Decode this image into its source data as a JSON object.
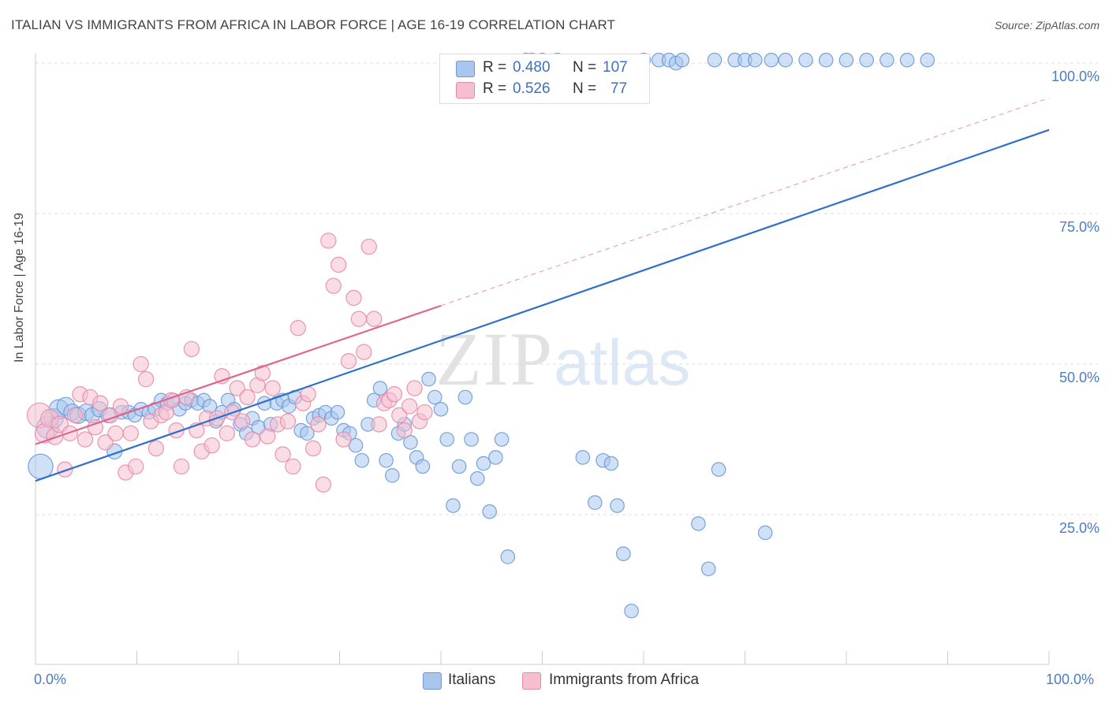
{
  "title": "ITALIAN VS IMMIGRANTS FROM AFRICA IN LABOR FORCE | AGE 16-19 CORRELATION CHART",
  "source": "Source: ZipAtlas.com",
  "watermark": {
    "zip": "ZIP",
    "atlas": "atlas"
  },
  "legend_top": {
    "rows": [
      {
        "r_label": "R =",
        "r_value": "0.480",
        "n_label": "N =",
        "n_value": "107",
        "color": "#a9c6ee"
      },
      {
        "r_label": "R =",
        "r_value": "0.526",
        "n_label": "N =",
        "n_value": "77",
        "color": "#f6bfd0"
      }
    ]
  },
  "legend_bottom": [
    {
      "label": "Italians",
      "color": "#a9c6ee"
    },
    {
      "label": "Immigrants from Africa",
      "color": "#f6bfd0"
    }
  ],
  "colors": {
    "italians_fill": "#a9c6ee",
    "italians_stroke": "#6c9ad6",
    "italians_line": "#2f6fcb",
    "africa_fill": "#f6bfd0",
    "africa_stroke": "#e98aa8",
    "africa_line": "#e0648e",
    "grid": "#dddddd",
    "tick_text": "#4a7cc5"
  },
  "chart_data": {
    "type": "scatter",
    "title": "ITALIAN VS IMMIGRANTS FROM AFRICA IN LABOR FORCE | AGE 16-19 CORRELATION CHART",
    "xlabel": "",
    "ylabel": "In Labor Force | Age 16-19",
    "xlim": [
      0,
      100
    ],
    "ylim": [
      0,
      105
    ],
    "x_tick_labels": [
      "0.0%",
      "100.0%"
    ],
    "y_ticks": [
      {
        "value": 100,
        "label": "100.0%"
      },
      {
        "value": 75,
        "label": "75.0%"
      },
      {
        "value": 50,
        "label": "50.0%"
      },
      {
        "value": 25,
        "label": "25.0%"
      }
    ],
    "grid": true,
    "legend_position": "bottom",
    "series": [
      {
        "name": "Italians",
        "r": 0.48,
        "n": 107,
        "trend": {
          "x": [
            0,
            100
          ],
          "y": [
            30.6,
            88.9
          ],
          "style": "solid"
        },
        "points": [
          [
            0.5,
            33.0,
            18
          ],
          [
            1.2,
            39.5,
            16
          ],
          [
            1.8,
            41.0,
            14
          ],
          [
            2.3,
            42.5,
            14
          ],
          [
            3.0,
            43.0,
            13
          ],
          [
            3.6,
            42.0,
            12
          ],
          [
            4.2,
            41.5,
            12
          ],
          [
            5.0,
            42.0,
            12
          ],
          [
            5.6,
            41.5,
            11
          ],
          [
            6.3,
            42.5,
            11
          ],
          [
            7.2,
            41.5,
            11
          ],
          [
            7.8,
            35.5,
            11
          ],
          [
            8.5,
            42.0,
            10
          ],
          [
            9.2,
            42.0,
            10
          ],
          [
            9.8,
            41.5,
            10
          ],
          [
            10.4,
            42.5,
            10
          ],
          [
            11.2,
            42.0,
            10
          ],
          [
            11.8,
            42.5,
            10
          ],
          [
            12.4,
            44.0,
            10
          ],
          [
            13.0,
            43.5,
            10
          ],
          [
            13.6,
            44.0,
            10
          ],
          [
            14.2,
            42.5,
            10
          ],
          [
            14.8,
            43.5,
            10
          ],
          [
            15.4,
            44.0,
            10
          ],
          [
            16.0,
            43.5,
            10
          ],
          [
            16.6,
            44.0,
            10
          ],
          [
            17.2,
            43.0,
            10
          ],
          [
            17.8,
            40.5,
            10
          ],
          [
            18.4,
            42.0,
            10
          ],
          [
            19.0,
            44.0,
            10
          ],
          [
            19.6,
            42.5,
            10
          ],
          [
            20.2,
            40.0,
            10
          ],
          [
            20.8,
            38.5,
            10
          ],
          [
            21.4,
            41.0,
            10
          ],
          [
            22.0,
            39.5,
            10
          ],
          [
            22.6,
            43.5,
            10
          ],
          [
            23.2,
            40.0,
            10
          ],
          [
            23.8,
            43.5,
            10
          ],
          [
            24.4,
            44.0,
            10
          ],
          [
            25.0,
            43.0,
            10
          ],
          [
            25.6,
            44.5,
            10
          ],
          [
            26.2,
            39.0,
            10
          ],
          [
            26.8,
            38.5,
            10
          ],
          [
            27.4,
            41.0,
            10
          ],
          [
            28.0,
            41.5,
            10
          ],
          [
            28.6,
            42.0,
            10
          ],
          [
            29.2,
            41.0,
            10
          ],
          [
            29.8,
            42.0,
            10
          ],
          [
            30.4,
            39.0,
            10
          ],
          [
            31.0,
            38.5,
            10
          ],
          [
            31.6,
            36.5,
            10
          ],
          [
            32.2,
            34.0,
            10
          ],
          [
            32.8,
            40.0,
            10
          ],
          [
            33.4,
            44.0,
            10
          ],
          [
            34.0,
            46.0,
            10
          ],
          [
            34.6,
            34.0,
            10
          ],
          [
            35.2,
            31.5,
            10
          ],
          [
            35.8,
            38.5,
            10
          ],
          [
            36.4,
            40.0,
            10
          ],
          [
            37.0,
            37.0,
            10
          ],
          [
            37.6,
            34.5,
            10
          ],
          [
            38.2,
            33.0,
            10
          ],
          [
            38.8,
            47.5,
            10
          ],
          [
            39.4,
            44.5,
            10
          ],
          [
            40.0,
            42.5,
            10
          ],
          [
            40.6,
            37.5,
            10
          ],
          [
            41.2,
            26.5,
            10
          ],
          [
            41.8,
            33.0,
            10
          ],
          [
            42.4,
            44.5,
            10
          ],
          [
            43.0,
            37.5,
            10
          ],
          [
            43.6,
            31.0,
            10
          ],
          [
            44.2,
            33.5,
            10
          ],
          [
            44.8,
            25.5,
            10
          ],
          [
            45.4,
            34.5,
            10
          ],
          [
            46.0,
            37.5,
            10
          ],
          [
            46.6,
            18.0,
            10
          ],
          [
            47.2,
            98.0,
            10
          ],
          [
            47.8,
            100.0,
            10
          ],
          [
            48.4,
            100.5,
            10
          ],
          [
            49.0,
            100.5,
            10
          ],
          [
            50.0,
            100.5,
            10
          ],
          [
            51.5,
            100.5,
            10
          ],
          [
            53.0,
            100.0,
            10
          ],
          [
            54.0,
            34.5,
            10
          ],
          [
            55.2,
            27.0,
            10
          ],
          [
            56.0,
            34.0,
            10
          ],
          [
            56.8,
            33.5,
            10
          ],
          [
            57.4,
            26.5,
            10
          ],
          [
            58.0,
            18.5,
            10
          ],
          [
            58.8,
            9.0,
            10
          ],
          [
            60.0,
            100.5,
            10
          ],
          [
            61.5,
            100.5,
            10
          ],
          [
            62.5,
            100.5,
            10
          ],
          [
            63.2,
            100.0,
            10
          ],
          [
            63.8,
            100.5,
            10
          ],
          [
            65.4,
            23.5,
            10
          ],
          [
            66.4,
            16.0,
            10
          ],
          [
            67.4,
            32.5,
            10
          ],
          [
            69.0,
            100.5,
            10
          ],
          [
            70.0,
            100.5,
            10
          ],
          [
            72.0,
            22.0,
            10
          ],
          [
            67.0,
            100.5,
            10
          ],
          [
            71.0,
            100.5,
            10
          ],
          [
            72.6,
            100.5,
            10
          ],
          [
            74.0,
            100.5,
            10
          ],
          [
            76.0,
            100.5,
            10
          ],
          [
            78.0,
            100.5,
            10
          ],
          [
            80.0,
            100.5,
            10
          ],
          [
            82.0,
            100.5,
            10
          ],
          [
            84.0,
            100.5,
            10
          ],
          [
            86.0,
            100.5,
            10
          ],
          [
            88.0,
            100.5,
            10
          ]
        ]
      },
      {
        "name": "Immigrants from Africa",
        "r": 0.526,
        "n": 77,
        "trend": {
          "x": [
            0,
            40
          ],
          "y": [
            36.7,
            59.7
          ],
          "style": "solid",
          "extension_x": [
            40,
            100
          ],
          "extension_y": [
            59.7,
            94.2
          ],
          "extension_style": "dashed"
        },
        "points": [
          [
            0.4,
            41.5,
            18
          ],
          [
            0.9,
            38.5,
            14
          ],
          [
            1.4,
            41.0,
            13
          ],
          [
            1.9,
            38.0,
            12
          ],
          [
            2.4,
            40.0,
            12
          ],
          [
            2.9,
            32.5,
            11
          ],
          [
            3.4,
            38.5,
            11
          ],
          [
            3.9,
            41.5,
            11
          ],
          [
            4.4,
            45.0,
            11
          ],
          [
            4.9,
            37.5,
            11
          ],
          [
            5.4,
            44.5,
            11
          ],
          [
            5.9,
            39.5,
            11
          ],
          [
            6.4,
            43.5,
            11
          ],
          [
            6.9,
            37.0,
            11
          ],
          [
            7.4,
            41.5,
            11
          ],
          [
            7.9,
            38.5,
            11
          ],
          [
            8.4,
            43.0,
            11
          ],
          [
            8.9,
            32.0,
            11
          ],
          [
            9.4,
            38.5,
            11
          ],
          [
            9.9,
            33.0,
            11
          ],
          [
            10.4,
            50.0,
            11
          ],
          [
            10.9,
            47.5,
            11
          ],
          [
            11.4,
            40.5,
            11
          ],
          [
            11.9,
            36.0,
            11
          ],
          [
            12.4,
            41.5,
            11
          ],
          [
            12.9,
            42.0,
            11
          ],
          [
            13.4,
            44.0,
            11
          ],
          [
            13.9,
            39.0,
            11
          ],
          [
            14.4,
            33.0,
            11
          ],
          [
            14.9,
            44.5,
            11
          ],
          [
            15.4,
            52.5,
            11
          ],
          [
            15.9,
            39.0,
            11
          ],
          [
            16.4,
            35.5,
            11
          ],
          [
            16.9,
            41.0,
            11
          ],
          [
            17.4,
            36.5,
            11
          ],
          [
            17.9,
            41.0,
            11
          ],
          [
            18.4,
            48.0,
            11
          ],
          [
            18.9,
            38.5,
            11
          ],
          [
            19.4,
            42.0,
            11
          ],
          [
            19.9,
            46.0,
            11
          ],
          [
            20.4,
            40.5,
            11
          ],
          [
            20.9,
            44.5,
            11
          ],
          [
            21.4,
            37.5,
            11
          ],
          [
            21.9,
            46.5,
            11
          ],
          [
            22.4,
            48.5,
            11
          ],
          [
            22.9,
            38.0,
            11
          ],
          [
            23.4,
            46.0,
            11
          ],
          [
            23.9,
            40.0,
            11
          ],
          [
            24.4,
            35.0,
            11
          ],
          [
            24.9,
            40.5,
            11
          ],
          [
            25.4,
            33.0,
            11
          ],
          [
            25.9,
            56.0,
            11
          ],
          [
            26.4,
            43.5,
            11
          ],
          [
            26.9,
            45.0,
            11
          ],
          [
            27.4,
            36.0,
            11
          ],
          [
            27.9,
            40.0,
            11
          ],
          [
            28.4,
            30.0,
            11
          ],
          [
            28.9,
            70.5,
            11
          ],
          [
            29.4,
            63.0,
            11
          ],
          [
            29.9,
            66.5,
            11
          ],
          [
            30.4,
            37.5,
            11
          ],
          [
            30.9,
            50.5,
            11
          ],
          [
            31.4,
            61.0,
            11
          ],
          [
            31.9,
            57.5,
            11
          ],
          [
            32.4,
            52.0,
            11
          ],
          [
            32.9,
            69.5,
            11
          ],
          [
            33.4,
            57.5,
            11
          ],
          [
            33.9,
            40.0,
            11
          ],
          [
            34.4,
            43.5,
            11
          ],
          [
            34.9,
            44.0,
            11
          ],
          [
            35.4,
            45.0,
            11
          ],
          [
            35.9,
            41.5,
            11
          ],
          [
            36.4,
            39.0,
            11
          ],
          [
            36.9,
            43.0,
            11
          ],
          [
            37.4,
            46.0,
            11
          ],
          [
            37.9,
            40.5,
            11
          ],
          [
            38.4,
            42.0,
            11
          ]
        ]
      }
    ]
  },
  "y_axis_label": "In Labor Force | Age 16-19",
  "y_tick_labels": [
    "100.0%",
    "75.0%",
    "50.0%",
    "25.0%"
  ],
  "x_tick_labels": [
    "0.0%",
    "100.0%"
  ]
}
